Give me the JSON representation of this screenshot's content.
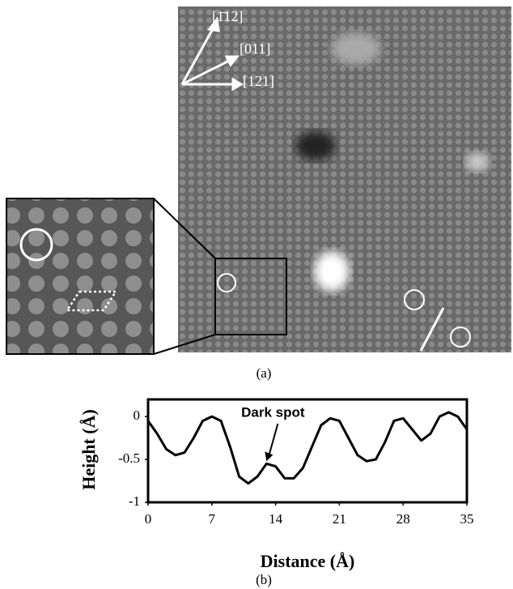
{
  "panel_a": {
    "label": "(a)",
    "directions": [
      "[1̄12]",
      "[011]",
      "[121]"
    ]
  },
  "chart_data": {
    "type": "line",
    "panel_label": "(b)",
    "x_label": "Distance (Å)",
    "y_label": "Height (Å)",
    "x": [
      0,
      1,
      2,
      3,
      4,
      5,
      6,
      7,
      8,
      9,
      10,
      11,
      12,
      13,
      14,
      15,
      16,
      17,
      18,
      19,
      20,
      21,
      22,
      23,
      24,
      25,
      26,
      27,
      28,
      29,
      30,
      31,
      32,
      33,
      34,
      35
    ],
    "series": [
      {
        "color": "#000000",
        "values": [
          -0.05,
          -0.2,
          -0.38,
          -0.45,
          -0.42,
          -0.25,
          -0.05,
          0.0,
          -0.05,
          -0.35,
          -0.7,
          -0.78,
          -0.7,
          -0.55,
          -0.58,
          -0.72,
          -0.72,
          -0.6,
          -0.35,
          -0.1,
          -0.02,
          -0.05,
          -0.25,
          -0.45,
          -0.52,
          -0.5,
          -0.3,
          -0.05,
          -0.02,
          -0.15,
          -0.28,
          -0.2,
          0.0,
          0.05,
          0.0,
          -0.15
        ]
      }
    ],
    "xlim": [
      0,
      35
    ],
    "xticks": [
      0,
      7,
      14,
      21,
      28,
      35
    ],
    "ylim": [
      -1,
      0.2
    ],
    "yticks": [
      0,
      -0.5,
      -1
    ],
    "annotations": [
      {
        "text": "Dark spot",
        "x": 13,
        "y": -0.55
      }
    ]
  }
}
